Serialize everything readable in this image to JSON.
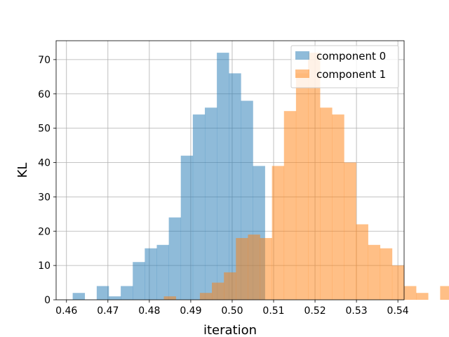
{
  "chart_data": {
    "type": "bar",
    "histogram": true,
    "xlabel": "iteration",
    "ylabel": "KL",
    "xlim": [
      0.4575,
      0.5415
    ],
    "ylim": [
      0,
      75.5
    ],
    "xticks": [
      "0.46",
      "0.47",
      "0.48",
      "0.49",
      "0.50",
      "0.51",
      "0.52",
      "0.53",
      "0.54"
    ],
    "xtick_values": [
      0.46,
      0.47,
      0.48,
      0.49,
      0.5,
      0.51,
      0.52,
      0.53,
      0.54
    ],
    "yticks": [
      "0",
      "10",
      "20",
      "30",
      "40",
      "50",
      "60",
      "70"
    ],
    "ytick_values": [
      0,
      10,
      20,
      30,
      40,
      50,
      60,
      70
    ],
    "grid": true,
    "legend_position": "top-right",
    "series": [
      {
        "name": "component 0",
        "color": "#1f77b4",
        "alpha": 0.5,
        "bin_start": 0.4615,
        "bin_width": 0.0029,
        "values": [
          2,
          0,
          4,
          1,
          4,
          11,
          15,
          16,
          24,
          42,
          54,
          56,
          72,
          66,
          58,
          39
        ]
      },
      {
        "name": "component 1",
        "color": "#ff7f0e",
        "alpha": 0.5,
        "bin_start": 0.4835,
        "bin_width": 0.0029,
        "values": [
          1,
          0,
          0,
          2,
          5,
          8,
          18,
          19,
          18,
          39,
          55,
          66,
          72,
          56,
          54,
          40,
          22,
          16,
          15,
          10,
          4,
          2,
          0,
          4,
          0,
          2
        ]
      }
    ]
  }
}
